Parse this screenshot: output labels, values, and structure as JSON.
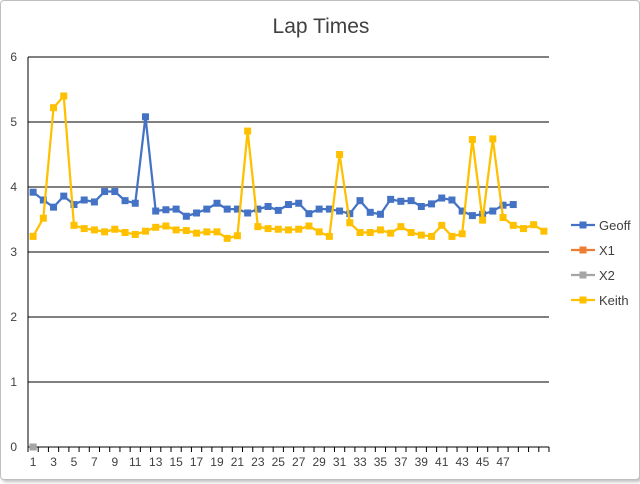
{
  "chart_data": {
    "type": "line",
    "title": "Lap Times",
    "ylim": [
      0,
      6
    ],
    "yticks": [
      0,
      1,
      2,
      3,
      4,
      5,
      6
    ],
    "x_labels": [
      "1",
      "3",
      "5",
      "7",
      "9",
      "11",
      "13",
      "15",
      "17",
      "19",
      "21",
      "23",
      "25",
      "27",
      "29",
      "31",
      "33",
      "35",
      "37",
      "39",
      "41",
      "43",
      "45",
      "47"
    ],
    "x_count": 51,
    "grid": "horizontal",
    "legend": "right",
    "series": [
      {
        "name": "Geoff",
        "color": "#4472C4",
        "values": [
          3.92,
          3.8,
          3.69,
          3.86,
          3.73,
          3.8,
          3.77,
          3.93,
          3.93,
          3.79,
          3.75,
          5.08,
          3.63,
          3.65,
          3.66,
          3.55,
          3.6,
          3.66,
          3.75,
          3.66,
          3.66,
          3.6,
          3.66,
          3.7,
          3.64,
          3.73,
          3.75,
          3.59,
          3.66,
          3.66,
          3.63,
          3.59,
          3.79,
          3.61,
          3.58,
          3.81,
          3.78,
          3.79,
          3.7,
          3.74,
          3.83,
          3.8,
          3.63,
          3.56,
          3.58,
          3.63,
          3.72,
          3.73
        ]
      },
      {
        "name": "X1",
        "color": "#ED7D31",
        "values": [
          0
        ]
      },
      {
        "name": "X2",
        "color": "#A5A5A5",
        "values": [
          0
        ]
      },
      {
        "name": "Keith",
        "color": "#FFC000",
        "values": [
          3.24,
          3.52,
          5.22,
          5.4,
          3.41,
          3.36,
          3.34,
          3.31,
          3.35,
          3.3,
          3.27,
          3.32,
          3.38,
          3.4,
          3.34,
          3.33,
          3.29,
          3.31,
          3.31,
          3.21,
          3.25,
          4.86,
          3.39,
          3.36,
          3.35,
          3.34,
          3.35,
          3.4,
          3.31,
          3.24,
          4.5,
          3.45,
          3.3,
          3.3,
          3.34,
          3.29,
          3.39,
          3.3,
          3.26,
          3.24,
          3.41,
          3.24,
          3.28,
          4.73,
          3.49,
          4.74,
          3.53,
          3.41,
          3.36,
          3.42,
          3.32
        ]
      }
    ]
  }
}
